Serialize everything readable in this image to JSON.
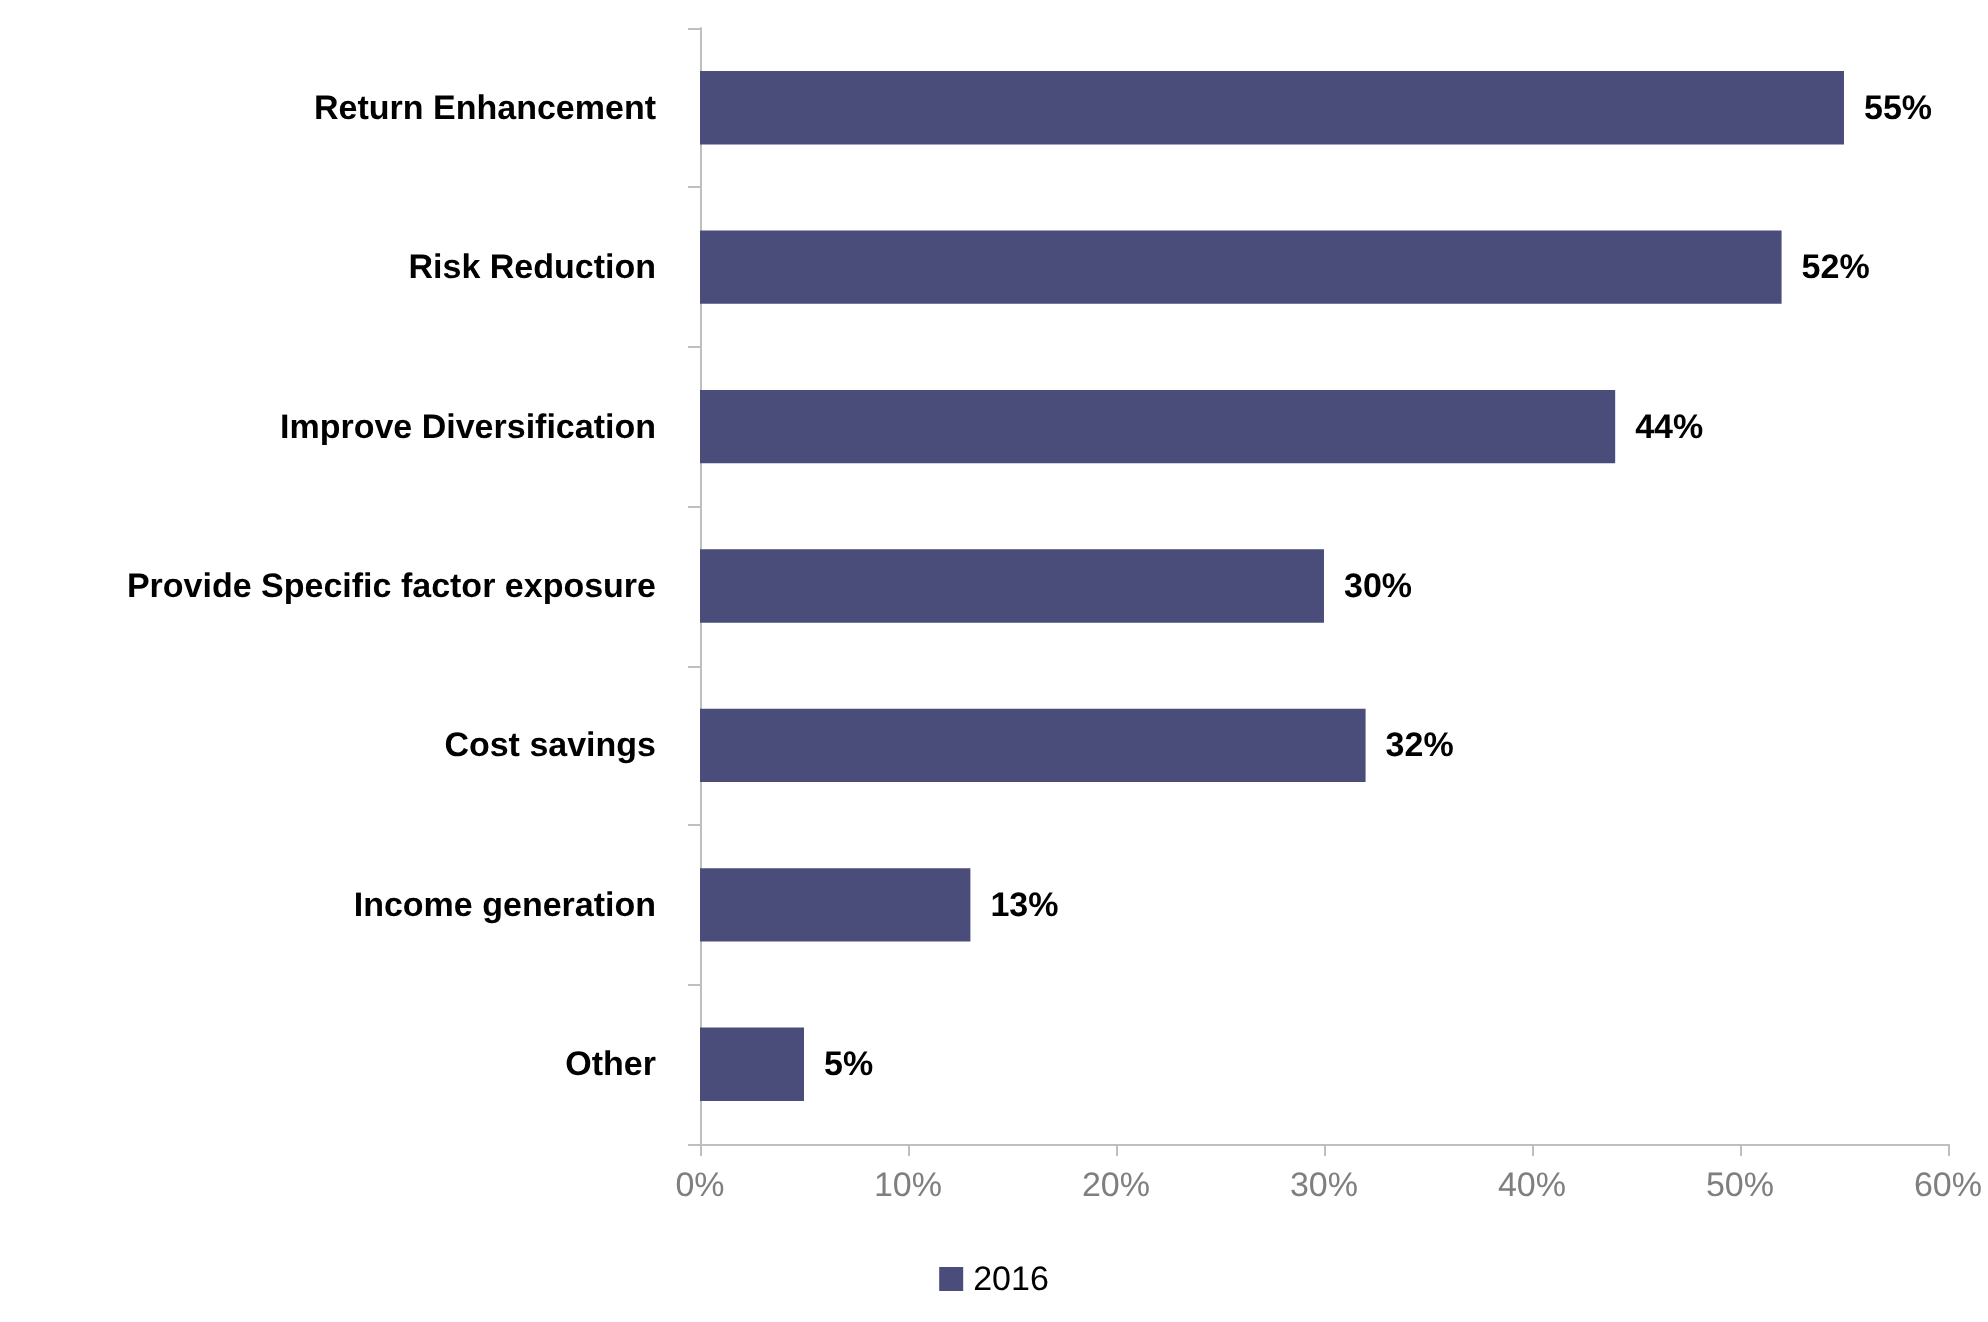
{
  "chart_data": {
    "type": "bar",
    "orientation": "horizontal",
    "categories": [
      "Return Enhancement",
      "Risk Reduction",
      "Improve Diversification",
      "Provide Specific factor exposure",
      "Cost savings",
      "Income generation",
      "Other"
    ],
    "series": [
      {
        "name": "2016",
        "color": "#4a4c79",
        "values": [
          55,
          52,
          44,
          30,
          32,
          13,
          5
        ],
        "value_labels": [
          "55%",
          "52%",
          "44%",
          "30%",
          "32%",
          "13%",
          "5%"
        ]
      }
    ],
    "xlim": [
      0,
      60
    ],
    "xticks": [
      {
        "value": 0,
        "label": "0%"
      },
      {
        "value": 10,
        "label": "10%"
      },
      {
        "value": 20,
        "label": "20%"
      },
      {
        "value": 30,
        "label": "30%"
      },
      {
        "value": 40,
        "label": "40%"
      },
      {
        "value": 50,
        "label": "50%"
      },
      {
        "value": 60,
        "label": "60%"
      }
    ],
    "grid": false,
    "legend": "bottom"
  }
}
